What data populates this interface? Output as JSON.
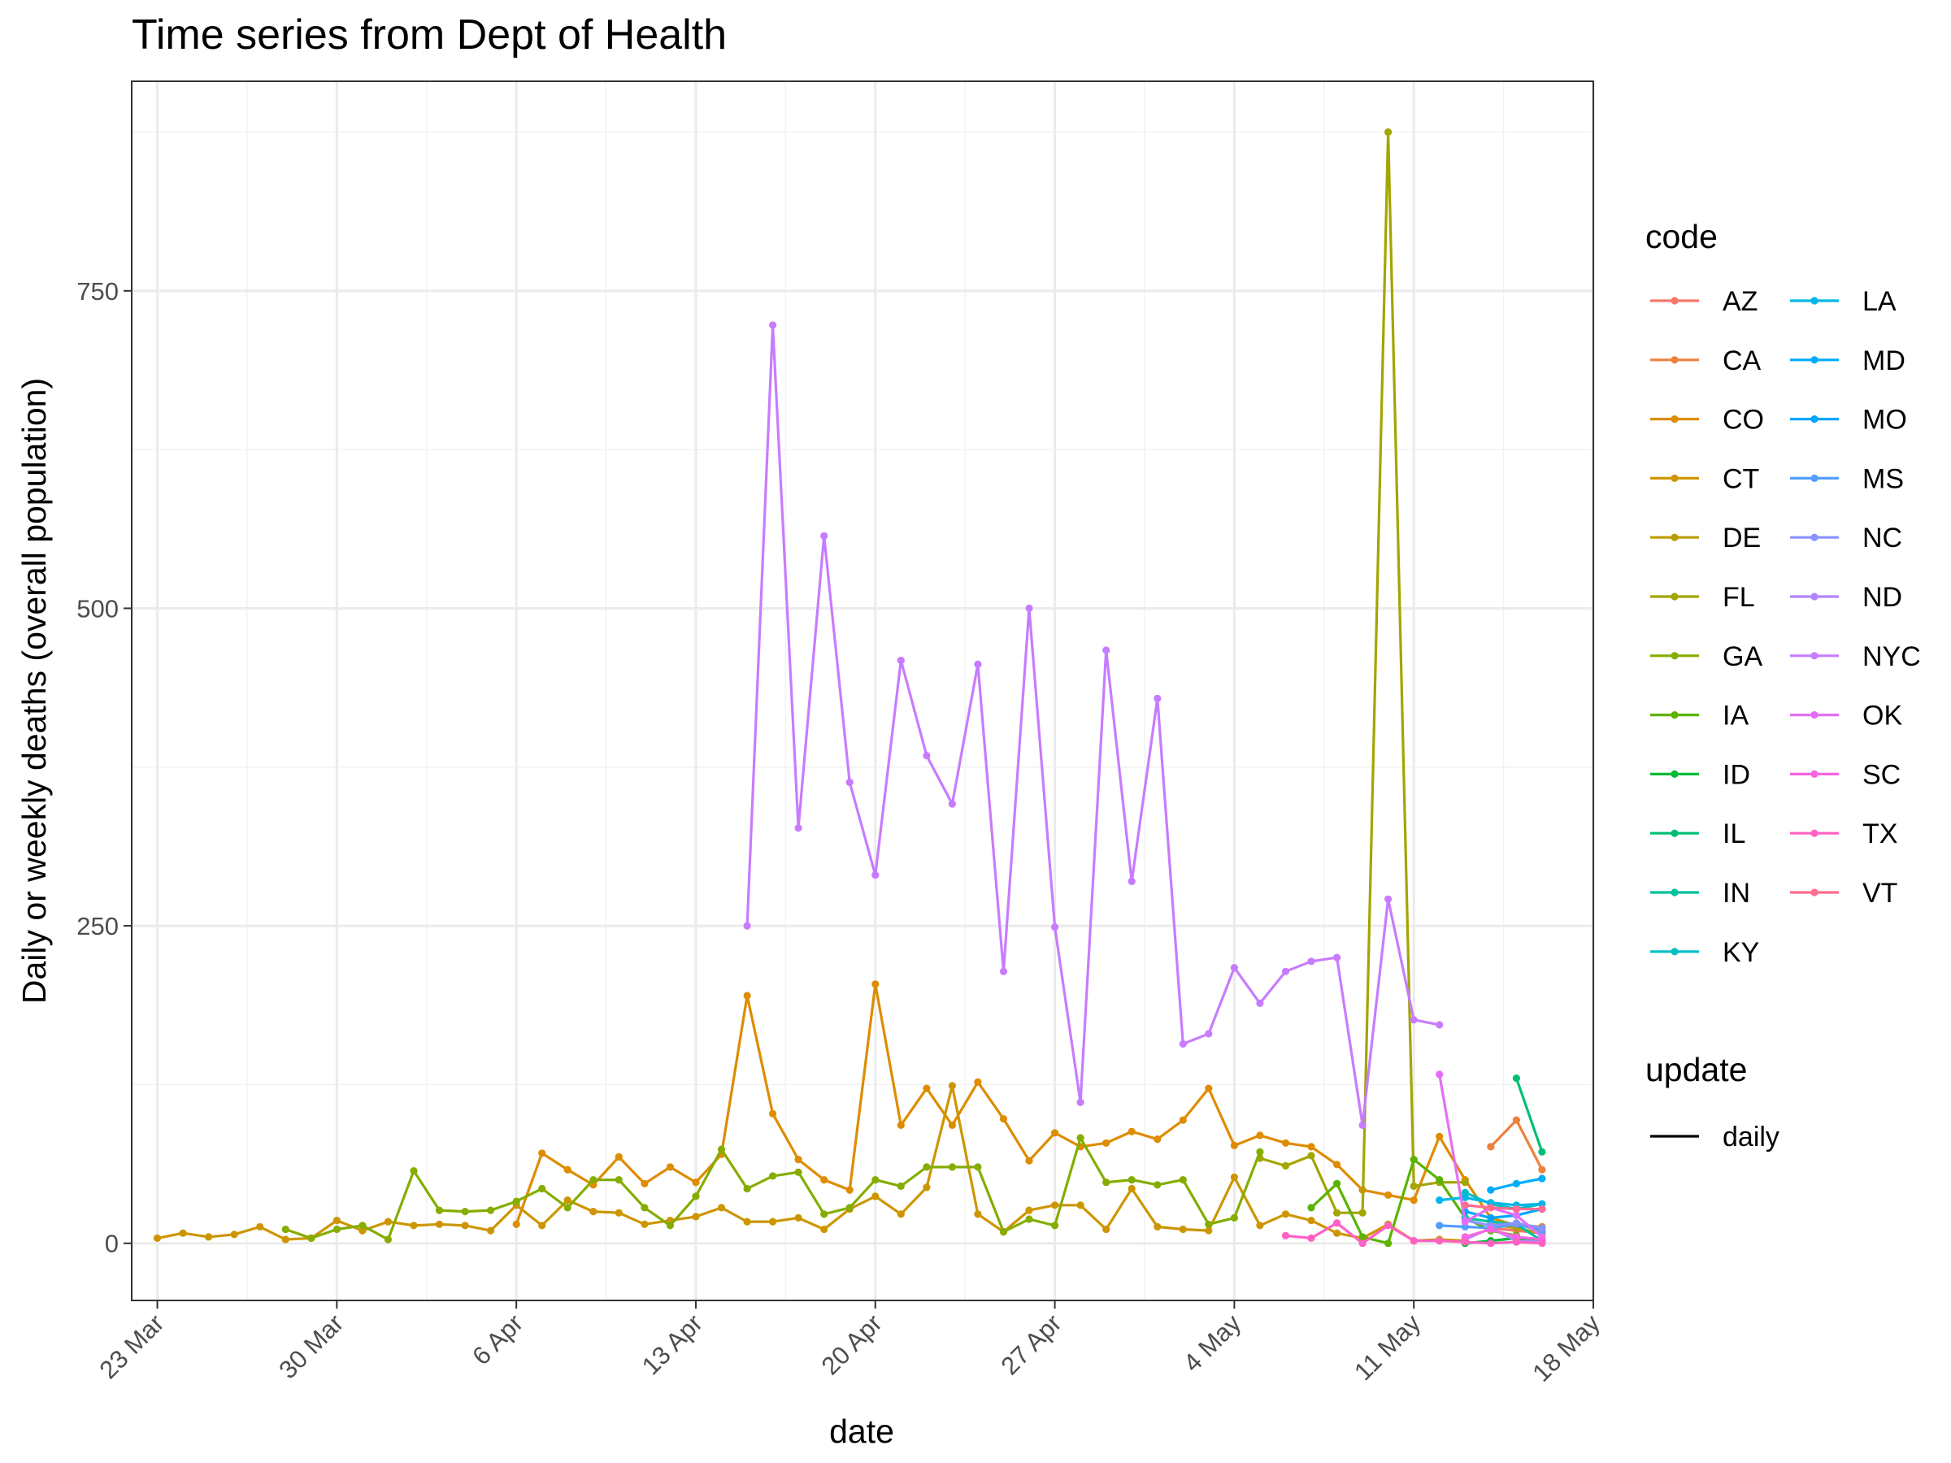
{
  "chart_data": {
    "type": "line",
    "title": "Time series from Dept of Health",
    "xlabel": "date",
    "ylabel": "Daily or weekly deaths (overall population)",
    "x_ticks": [
      "23 Mar",
      "30 Mar",
      "6 Apr",
      "13 Apr",
      "20 Apr",
      "27 Apr",
      "4 May",
      "11 May",
      "18 May"
    ],
    "y_ticks": [
      0,
      250,
      500,
      750
    ],
    "xlim": [
      "2020-03-22",
      "2020-05-18"
    ],
    "ylim": [
      -45,
      915
    ],
    "grid": true,
    "legend_position": "right",
    "legend": {
      "title": "code",
      "entries": [
        "AZ",
        "CA",
        "CO",
        "CT",
        "DE",
        "FL",
        "GA",
        "IA",
        "ID",
        "IL",
        "IN",
        "KY",
        "LA",
        "MD",
        "MO",
        "MS",
        "NC",
        "ND",
        "NYC",
        "OK",
        "SC",
        "TX",
        "VT"
      ]
    },
    "legend2": {
      "title": "update",
      "entries": [
        "daily"
      ]
    },
    "series": [
      {
        "name": "AZ",
        "color": "#F8766D",
        "x": [
          "2020-05-14",
          "2020-05-15",
          "2020-05-16"
        ],
        "y": [
          12,
          10,
          8
        ]
      },
      {
        "name": "CA",
        "color": "#ED813E",
        "x": [
          "2020-05-14",
          "2020-05-15",
          "2020-05-16"
        ],
        "y": [
          76,
          97,
          58
        ]
      },
      {
        "name": "CO",
        "color": "#DE8C00",
        "x": [
          "2020-04-06",
          "2020-04-07",
          "2020-04-08",
          "2020-04-09",
          "2020-04-10",
          "2020-04-11",
          "2020-04-12",
          "2020-04-13",
          "2020-04-14",
          "2020-04-15",
          "2020-04-16",
          "2020-04-17",
          "2020-04-18",
          "2020-04-19",
          "2020-04-20",
          "2020-04-21",
          "2020-04-22",
          "2020-04-23",
          "2020-04-24",
          "2020-04-25",
          "2020-04-26",
          "2020-04-27",
          "2020-04-28",
          "2020-04-29",
          "2020-04-30",
          "2020-05-01",
          "2020-05-02",
          "2020-05-03",
          "2020-05-04",
          "2020-05-05",
          "2020-05-06",
          "2020-05-07",
          "2020-05-08",
          "2020-05-09",
          "2020-05-10",
          "2020-05-11",
          "2020-05-12",
          "2020-05-13",
          "2020-05-14",
          "2020-05-15",
          "2020-05-16"
        ],
        "y": [
          15,
          71,
          58,
          46,
          68,
          47,
          60,
          48,
          70,
          195,
          102,
          66,
          50,
          42,
          204,
          93,
          122,
          93,
          127,
          98,
          65,
          87,
          76,
          79,
          88,
          82,
          97,
          122,
          77,
          85,
          79,
          76,
          62,
          42,
          38,
          34,
          84,
          50,
          20,
          14,
          13
        ]
      },
      {
        "name": "CT",
        "color": "#CD9600",
        "x": [
          "2020-03-23",
          "2020-03-24",
          "2020-03-25",
          "2020-03-26",
          "2020-03-27",
          "2020-03-28",
          "2020-03-29",
          "2020-03-30",
          "2020-03-31",
          "2020-04-01",
          "2020-04-02",
          "2020-04-03",
          "2020-04-04",
          "2020-04-05",
          "2020-04-06",
          "2020-04-07",
          "2020-04-08",
          "2020-04-09",
          "2020-04-10",
          "2020-04-11",
          "2020-04-12",
          "2020-04-13",
          "2020-04-14",
          "2020-04-15",
          "2020-04-16",
          "2020-04-17",
          "2020-04-18",
          "2020-04-19",
          "2020-04-20",
          "2020-04-21",
          "2020-04-22",
          "2020-04-23",
          "2020-04-24",
          "2020-04-25",
          "2020-04-26",
          "2020-04-27",
          "2020-04-28",
          "2020-04-29",
          "2020-04-30",
          "2020-05-01",
          "2020-05-02",
          "2020-05-03",
          "2020-05-04",
          "2020-05-05",
          "2020-05-06",
          "2020-05-07",
          "2020-05-08",
          "2020-05-09",
          "2020-05-10",
          "2020-05-11",
          "2020-05-12",
          "2020-05-13"
        ],
        "y": [
          4,
          8,
          5,
          7,
          13,
          3,
          4,
          18,
          10,
          17,
          14,
          15,
          14,
          10,
          30,
          14,
          34,
          25,
          24,
          15,
          18,
          21,
          28,
          17,
          17,
          20,
          11,
          27,
          37,
          23,
          44,
          124,
          23,
          9,
          26,
          30,
          30,
          11,
          43,
          13,
          11,
          10,
          52,
          14,
          23,
          18,
          8,
          4,
          15,
          2,
          3,
          2
        ]
      },
      {
        "name": "DE",
        "color": "#BB9D00",
        "x": [
          "2020-05-14",
          "2020-05-15",
          "2020-05-16"
        ],
        "y": [
          15,
          12,
          8
        ]
      },
      {
        "name": "FL",
        "color": "#A3A500",
        "x": [
          "2020-05-05",
          "2020-05-06",
          "2020-05-07",
          "2020-05-08",
          "2020-05-09",
          "2020-05-10",
          "2020-05-11",
          "2020-05-12",
          "2020-05-13"
        ],
        "y": [
          67,
          61,
          69,
          24,
          24,
          875,
          45,
          48,
          48
        ]
      },
      {
        "name": "GA",
        "color": "#85AD00",
        "x": [
          "2020-03-28",
          "2020-03-29",
          "2020-03-30",
          "2020-03-31",
          "2020-04-01",
          "2020-04-02",
          "2020-04-03",
          "2020-04-04",
          "2020-04-05",
          "2020-04-06",
          "2020-04-07",
          "2020-04-08",
          "2020-04-09",
          "2020-04-10",
          "2020-04-11",
          "2020-04-12",
          "2020-04-13",
          "2020-04-14",
          "2020-04-15",
          "2020-04-16",
          "2020-04-17",
          "2020-04-18",
          "2020-04-19",
          "2020-04-20",
          "2020-04-21",
          "2020-04-22",
          "2020-04-23",
          "2020-04-24",
          "2020-04-25",
          "2020-04-26",
          "2020-04-27",
          "2020-04-28",
          "2020-04-29",
          "2020-04-30",
          "2020-05-01",
          "2020-05-02",
          "2020-05-03",
          "2020-05-04",
          "2020-05-05"
        ],
        "y": [
          11,
          4,
          11,
          14,
          3,
          57,
          26,
          25,
          26,
          33,
          43,
          28,
          50,
          50,
          28,
          14,
          37,
          74,
          43,
          53,
          56,
          23,
          28,
          50,
          45,
          60,
          60,
          60,
          9,
          19,
          14,
          83,
          48,
          50,
          46,
          50,
          15,
          20,
          72
        ]
      },
      {
        "name": "IA",
        "color": "#5BB300",
        "x": [
          "2020-05-07",
          "2020-05-08",
          "2020-05-09",
          "2020-05-10",
          "2020-05-11",
          "2020-05-12",
          "2020-05-13",
          "2020-05-14",
          "2020-05-15"
        ],
        "y": [
          28,
          47,
          5,
          0,
          66,
          50,
          20,
          10,
          6
        ]
      },
      {
        "name": "ID",
        "color": "#00BA38",
        "x": [
          "2020-05-13",
          "2020-05-14",
          "2020-05-15",
          "2020-05-16"
        ],
        "y": [
          0,
          2,
          4,
          1
        ]
      },
      {
        "name": "IL",
        "color": "#00BF74",
        "x": [
          "2020-05-15",
          "2020-05-16"
        ],
        "y": [
          130,
          72
        ]
      },
      {
        "name": "IN",
        "color": "#00C19C",
        "x": [
          "2020-05-13",
          "2020-05-14",
          "2020-05-15",
          "2020-05-16"
        ],
        "y": [
          20,
          17,
          15,
          2
        ]
      },
      {
        "name": "KY",
        "color": "#00BFC4",
        "x": [
          "2020-05-13",
          "2020-05-14",
          "2020-05-15",
          "2020-05-16"
        ],
        "y": [
          40,
          31,
          27,
          31
        ]
      },
      {
        "name": "LA",
        "color": "#00B8E7",
        "x": [
          "2020-05-12",
          "2020-05-13",
          "2020-05-14",
          "2020-05-15",
          "2020-05-16"
        ],
        "y": [
          34,
          36,
          32,
          30,
          31
        ]
      },
      {
        "name": "MD",
        "color": "#00ADFA",
        "x": [
          "2020-05-14",
          "2020-05-15",
          "2020-05-16"
        ],
        "y": [
          42,
          47,
          51
        ]
      },
      {
        "name": "MO",
        "color": "#00A5FF",
        "x": [
          "2020-05-13",
          "2020-05-14",
          "2020-05-15",
          "2020-05-16"
        ],
        "y": [
          25,
          20,
          22,
          27
        ]
      },
      {
        "name": "MS",
        "color": "#529EFF",
        "x": [
          "2020-05-12",
          "2020-05-13",
          "2020-05-14",
          "2020-05-15",
          "2020-05-16"
        ],
        "y": [
          14,
          13,
          12,
          15,
          10
        ]
      },
      {
        "name": "NC",
        "color": "#8B93FF",
        "x": [
          "2020-05-13",
          "2020-05-14",
          "2020-05-15",
          "2020-05-16"
        ],
        "y": [
          18,
          14,
          16,
          12
        ]
      },
      {
        "name": "ND",
        "color": "#B385FF",
        "x": [
          "2020-05-13",
          "2020-05-14",
          "2020-05-15",
          "2020-05-16"
        ],
        "y": [
          3,
          12,
          2,
          1
        ]
      },
      {
        "name": "NYC",
        "color": "#C77CFF",
        "x": [
          "2020-04-15",
          "2020-04-16",
          "2020-04-17",
          "2020-04-18",
          "2020-04-19",
          "2020-04-20",
          "2020-04-21",
          "2020-04-22",
          "2020-04-23",
          "2020-04-24",
          "2020-04-25",
          "2020-04-26",
          "2020-04-27",
          "2020-04-28",
          "2020-04-29",
          "2020-04-30",
          "2020-05-01",
          "2020-05-02",
          "2020-05-03",
          "2020-05-04",
          "2020-05-05",
          "2020-05-06",
          "2020-05-07",
          "2020-05-08",
          "2020-05-09",
          "2020-05-10",
          "2020-05-11",
          "2020-05-12"
        ],
        "y": [
          250,
          723,
          327,
          557,
          363,
          290,
          459,
          384,
          346,
          456,
          214,
          500,
          249,
          111,
          467,
          285,
          429,
          157,
          165,
          217,
          189,
          214,
          222,
          225,
          93,
          271,
          176,
          172
        ]
      },
      {
        "name": "OK",
        "color": "#E36EF6",
        "x": [
          "2020-05-12",
          "2020-05-13",
          "2020-05-14",
          "2020-05-15",
          "2020-05-16"
        ],
        "y": [
          133,
          17,
          28,
          22,
          5
        ]
      },
      {
        "name": "SC",
        "color": "#F763E0",
        "x": [
          "2020-05-13",
          "2020-05-14",
          "2020-05-15",
          "2020-05-16"
        ],
        "y": [
          5,
          11,
          5,
          3
        ]
      },
      {
        "name": "TX",
        "color": "#FF61C3",
        "x": [
          "2020-05-06",
          "2020-05-07",
          "2020-05-08",
          "2020-05-09",
          "2020-05-10",
          "2020-05-11",
          "2020-05-12",
          "2020-05-13",
          "2020-05-14",
          "2020-05-15",
          "2020-05-16"
        ],
        "y": [
          6,
          4,
          16,
          0,
          14,
          2,
          2,
          1,
          0,
          1,
          0
        ]
      },
      {
        "name": "VT",
        "color": "#FF6C91",
        "x": [
          "2020-05-13",
          "2020-05-14",
          "2020-05-15",
          "2020-05-16"
        ],
        "y": [
          30,
          28,
          27,
          27
        ]
      }
    ]
  }
}
